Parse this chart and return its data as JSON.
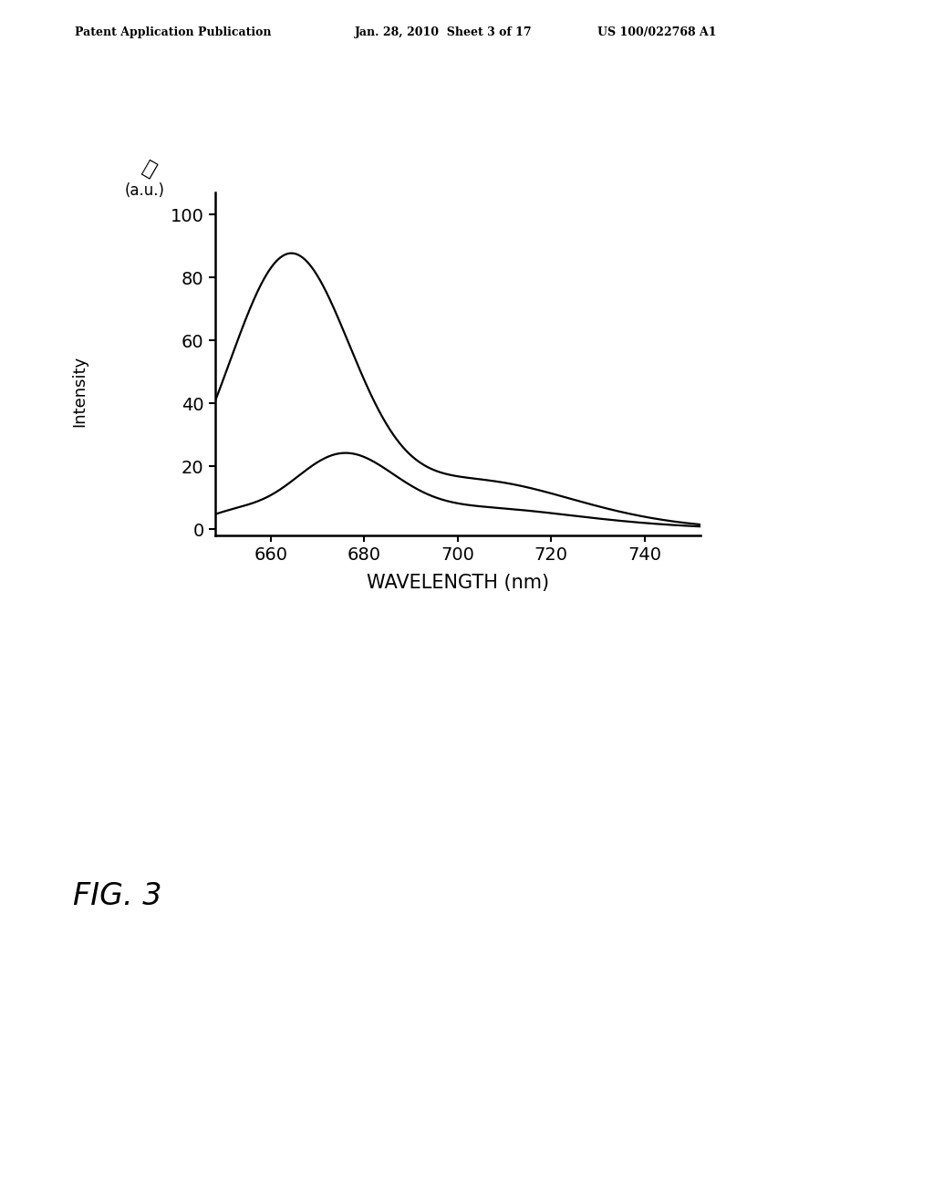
{
  "title": "",
  "xlabel": "WAVELENGTH (nm)",
  "ylabel_top": "(a.u.)",
  "ylabel_main": "Intensity",
  "xlim": [
    648,
    752
  ],
  "ylim": [
    -2,
    107
  ],
  "xticks": [
    660,
    680,
    700,
    720,
    740
  ],
  "yticks": [
    0,
    20,
    40,
    60,
    80,
    100
  ],
  "background_color": "#ffffff",
  "line_color": "#000000",
  "header_left": "Patent Application Publication",
  "header_mid": "Jan. 28, 2010  Sheet 3 of 17",
  "header_right": "US 100/022768 A1",
  "fig_label": "FIG. 3",
  "curve1_peak_x": 664,
  "curve1_peak_y": 86,
  "curve1_sigma": 13,
  "curve2_peak_x": 675,
  "curve2_peak_y": 22,
  "curve2_sigma": 11
}
